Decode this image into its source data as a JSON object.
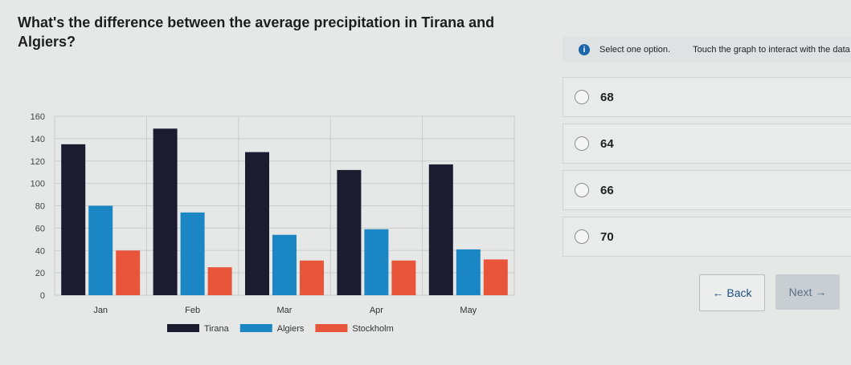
{
  "question": "What's the difference between the average precipitation in Tirana and Algiers?",
  "info": {
    "icon": "info-icon",
    "select_text": "Select one option.",
    "hint": "Touch the graph to interact with the data"
  },
  "options": [
    "68",
    "64",
    "66",
    "70"
  ],
  "buttons": {
    "back": "← Back",
    "next": "Next →"
  },
  "chart_data": {
    "type": "bar",
    "categories": [
      "Jan",
      "Feb",
      "Mar",
      "Apr",
      "May"
    ],
    "series": [
      {
        "name": "Tirana",
        "color": "#1c1c30",
        "values": [
          135,
          149,
          128,
          112,
          117
        ]
      },
      {
        "name": "Algiers",
        "color": "#1a86c3",
        "values": [
          80,
          74,
          54,
          59,
          41
        ]
      },
      {
        "name": "Stockholm",
        "color": "#e8553a",
        "values": [
          40,
          25,
          31,
          31,
          32
        ]
      }
    ],
    "yticks": [
      0,
      20,
      40,
      60,
      80,
      100,
      120,
      140,
      160
    ],
    "ylim": [
      0,
      160
    ],
    "grid": true,
    "legend": "bottom"
  }
}
